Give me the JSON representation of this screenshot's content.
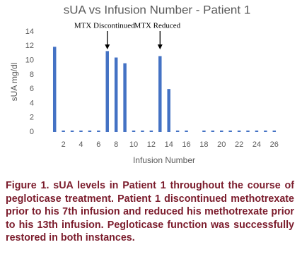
{
  "chart_data": {
    "type": "bar",
    "title": "sUA vs Infusion Number - Patient 1",
    "y_label": "sUA mg/dl",
    "x_label": "Infusion Number",
    "categories": [
      null,
      2,
      null,
      4,
      null,
      6,
      null,
      8,
      null,
      10,
      null,
      12,
      null,
      14,
      null,
      16,
      null,
      18,
      null,
      20,
      null,
      22,
      null,
      24,
      null,
      26
    ],
    "values": [
      11.9,
      0.2,
      0.2,
      0.2,
      0.2,
      0.2,
      11.3,
      10.4,
      9.6,
      0.2,
      0.2,
      0.2,
      10.6,
      6.0,
      0.2,
      0.2,
      null,
      0.2,
      0.2,
      0.2,
      0.2,
      0.2,
      0.2,
      0.2,
      0.2,
      0.2
    ],
    "color": "#4472c4",
    "ylim": [
      0,
      14
    ],
    "yticks": [
      0,
      2,
      4,
      6,
      8,
      10,
      12,
      14
    ],
    "annotations": [
      {
        "text": "MTX Discontinued",
        "index": 7
      },
      {
        "text": "MTX Reduced",
        "index": 13
      }
    ]
  },
  "caption": "Figure 1. sUA levels in Patient 1 throughout the course of pegloticase treatment. Patient 1 discontinued methotrexate prior to his 7th infusion and reduced his methotrexate prior to his 13th infusion. Pegloticase function was successfully restored in both instances."
}
